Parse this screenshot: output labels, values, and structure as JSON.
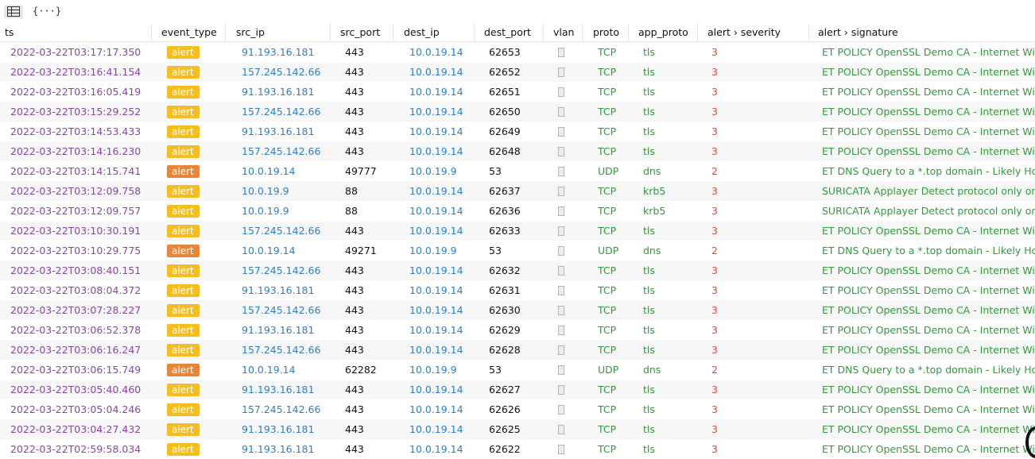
{
  "toolbar": {
    "table_icon": "table-icon",
    "json_label": "{···}"
  },
  "colors": {
    "alert_yellow": "#f5bd1f",
    "alert_orange": "#e7853a",
    "timestamp": "#8a44a8",
    "ip": "#2a7ecf",
    "proto": "#2f9a3a",
    "severity": "#e0473a"
  },
  "columns": [
    "ts",
    "event_type",
    "src_ip",
    "src_port",
    "dest_ip",
    "dest_port",
    "vlan",
    "proto",
    "app_proto",
    "alert › severity",
    "alert › signature"
  ],
  "rows": [
    {
      "ts": "2022-03-22T03:17:17.350",
      "event_type": "alert",
      "badge": "yellow",
      "src_ip": "91.193.16.181",
      "src_port": "443",
      "dest_ip": "10.0.19.14",
      "dest_port": "62653",
      "proto": "TCP",
      "app_proto": "tls",
      "severity": "3",
      "signature": "ET POLICY OpenSSL Demo CA - Internet Widg"
    },
    {
      "ts": "2022-03-22T03:16:41.154",
      "event_type": "alert",
      "badge": "yellow",
      "src_ip": "157.245.142.66",
      "src_port": "443",
      "dest_ip": "10.0.19.14",
      "dest_port": "62652",
      "proto": "TCP",
      "app_proto": "tls",
      "severity": "3",
      "signature": "ET POLICY OpenSSL Demo CA - Internet Widg"
    },
    {
      "ts": "2022-03-22T03:16:05.419",
      "event_type": "alert",
      "badge": "yellow",
      "src_ip": "91.193.16.181",
      "src_port": "443",
      "dest_ip": "10.0.19.14",
      "dest_port": "62651",
      "proto": "TCP",
      "app_proto": "tls",
      "severity": "3",
      "signature": "ET POLICY OpenSSL Demo CA - Internet Widg"
    },
    {
      "ts": "2022-03-22T03:15:29.252",
      "event_type": "alert",
      "badge": "yellow",
      "src_ip": "157.245.142.66",
      "src_port": "443",
      "dest_ip": "10.0.19.14",
      "dest_port": "62650",
      "proto": "TCP",
      "app_proto": "tls",
      "severity": "3",
      "signature": "ET POLICY OpenSSL Demo CA - Internet Widg"
    },
    {
      "ts": "2022-03-22T03:14:53.433",
      "event_type": "alert",
      "badge": "yellow",
      "src_ip": "91.193.16.181",
      "src_port": "443",
      "dest_ip": "10.0.19.14",
      "dest_port": "62649",
      "proto": "TCP",
      "app_proto": "tls",
      "severity": "3",
      "signature": "ET POLICY OpenSSL Demo CA - Internet Widg"
    },
    {
      "ts": "2022-03-22T03:14:16.230",
      "event_type": "alert",
      "badge": "yellow",
      "src_ip": "157.245.142.66",
      "src_port": "443",
      "dest_ip": "10.0.19.14",
      "dest_port": "62648",
      "proto": "TCP",
      "app_proto": "tls",
      "severity": "3",
      "signature": "ET POLICY OpenSSL Demo CA - Internet Widg"
    },
    {
      "ts": "2022-03-22T03:14:15.741",
      "event_type": "alert",
      "badge": "orange",
      "src_ip": "10.0.19.14",
      "src_port": "49777",
      "dest_ip": "10.0.19.9",
      "dest_port": "53",
      "proto": "UDP",
      "app_proto": "dns",
      "severity": "2",
      "signature": "ET DNS Query to a *.top domain - Likely Host"
    },
    {
      "ts": "2022-03-22T03:12:09.758",
      "event_type": "alert",
      "badge": "yellow",
      "src_ip": "10.0.19.9",
      "src_port": "88",
      "dest_ip": "10.0.19.14",
      "dest_port": "62637",
      "proto": "TCP",
      "app_proto": "krb5",
      "severity": "3",
      "signature": "SURICATA Applayer Detect protocol only one"
    },
    {
      "ts": "2022-03-22T03:12:09.757",
      "event_type": "alert",
      "badge": "yellow",
      "src_ip": "10.0.19.9",
      "src_port": "88",
      "dest_ip": "10.0.19.14",
      "dest_port": "62636",
      "proto": "TCP",
      "app_proto": "krb5",
      "severity": "3",
      "signature": "SURICATA Applayer Detect protocol only one"
    },
    {
      "ts": "2022-03-22T03:10:30.191",
      "event_type": "alert",
      "badge": "yellow",
      "src_ip": "157.245.142.66",
      "src_port": "443",
      "dest_ip": "10.0.19.14",
      "dest_port": "62633",
      "proto": "TCP",
      "app_proto": "tls",
      "severity": "3",
      "signature": "ET POLICY OpenSSL Demo CA - Internet Widg"
    },
    {
      "ts": "2022-03-22T03:10:29.775",
      "event_type": "alert",
      "badge": "orange",
      "src_ip": "10.0.19.14",
      "src_port": "49271",
      "dest_ip": "10.0.19.9",
      "dest_port": "53",
      "proto": "UDP",
      "app_proto": "dns",
      "severity": "2",
      "signature": "ET DNS Query to a *.top domain - Likely Host"
    },
    {
      "ts": "2022-03-22T03:08:40.151",
      "event_type": "alert",
      "badge": "yellow",
      "src_ip": "157.245.142.66",
      "src_port": "443",
      "dest_ip": "10.0.19.14",
      "dest_port": "62632",
      "proto": "TCP",
      "app_proto": "tls",
      "severity": "3",
      "signature": "ET POLICY OpenSSL Demo CA - Internet Widg"
    },
    {
      "ts": "2022-03-22T03:08:04.372",
      "event_type": "alert",
      "badge": "yellow",
      "src_ip": "91.193.16.181",
      "src_port": "443",
      "dest_ip": "10.0.19.14",
      "dest_port": "62631",
      "proto": "TCP",
      "app_proto": "tls",
      "severity": "3",
      "signature": "ET POLICY OpenSSL Demo CA - Internet Widg"
    },
    {
      "ts": "2022-03-22T03:07:28.227",
      "event_type": "alert",
      "badge": "yellow",
      "src_ip": "157.245.142.66",
      "src_port": "443",
      "dest_ip": "10.0.19.14",
      "dest_port": "62630",
      "proto": "TCP",
      "app_proto": "tls",
      "severity": "3",
      "signature": "ET POLICY OpenSSL Demo CA - Internet Widg"
    },
    {
      "ts": "2022-03-22T03:06:52.378",
      "event_type": "alert",
      "badge": "yellow",
      "src_ip": "91.193.16.181",
      "src_port": "443",
      "dest_ip": "10.0.19.14",
      "dest_port": "62629",
      "proto": "TCP",
      "app_proto": "tls",
      "severity": "3",
      "signature": "ET POLICY OpenSSL Demo CA - Internet Widg"
    },
    {
      "ts": "2022-03-22T03:06:16.247",
      "event_type": "alert",
      "badge": "yellow",
      "src_ip": "157.245.142.66",
      "src_port": "443",
      "dest_ip": "10.0.19.14",
      "dest_port": "62628",
      "proto": "TCP",
      "app_proto": "tls",
      "severity": "3",
      "signature": "ET POLICY OpenSSL Demo CA - Internet Widg"
    },
    {
      "ts": "2022-03-22T03:06:15.749",
      "event_type": "alert",
      "badge": "orange",
      "src_ip": "10.0.19.14",
      "src_port": "62282",
      "dest_ip": "10.0.19.9",
      "dest_port": "53",
      "proto": "UDP",
      "app_proto": "dns",
      "severity": "2",
      "signature": "ET DNS Query to a *.top domain - Likely Host"
    },
    {
      "ts": "2022-03-22T03:05:40.460",
      "event_type": "alert",
      "badge": "yellow",
      "src_ip": "91.193.16.181",
      "src_port": "443",
      "dest_ip": "10.0.19.14",
      "dest_port": "62627",
      "proto": "TCP",
      "app_proto": "tls",
      "severity": "3",
      "signature": "ET POLICY OpenSSL Demo CA - Internet Widg"
    },
    {
      "ts": "2022-03-22T03:05:04.246",
      "event_type": "alert",
      "badge": "yellow",
      "src_ip": "157.245.142.66",
      "src_port": "443",
      "dest_ip": "10.0.19.14",
      "dest_port": "62626",
      "proto": "TCP",
      "app_proto": "tls",
      "severity": "3",
      "signature": "ET POLICY OpenSSL Demo CA - Internet Widg"
    },
    {
      "ts": "2022-03-22T03:04:27.432",
      "event_type": "alert",
      "badge": "yellow",
      "src_ip": "91.193.16.181",
      "src_port": "443",
      "dest_ip": "10.0.19.14",
      "dest_port": "62625",
      "proto": "TCP",
      "app_proto": "tls",
      "severity": "3",
      "signature": "ET POLICY OpenSSL Demo CA - Internet Widg"
    },
    {
      "ts": "2022-03-22T02:59:58.034",
      "event_type": "alert",
      "badge": "yellow",
      "src_ip": "91.193.16.181",
      "src_port": "443",
      "dest_ip": "10.0.19.14",
      "dest_port": "62622",
      "proto": "TCP",
      "app_proto": "tls",
      "severity": "3",
      "signature": "ET POLICY OpenSSL Demo CA - Internet Widg"
    }
  ]
}
